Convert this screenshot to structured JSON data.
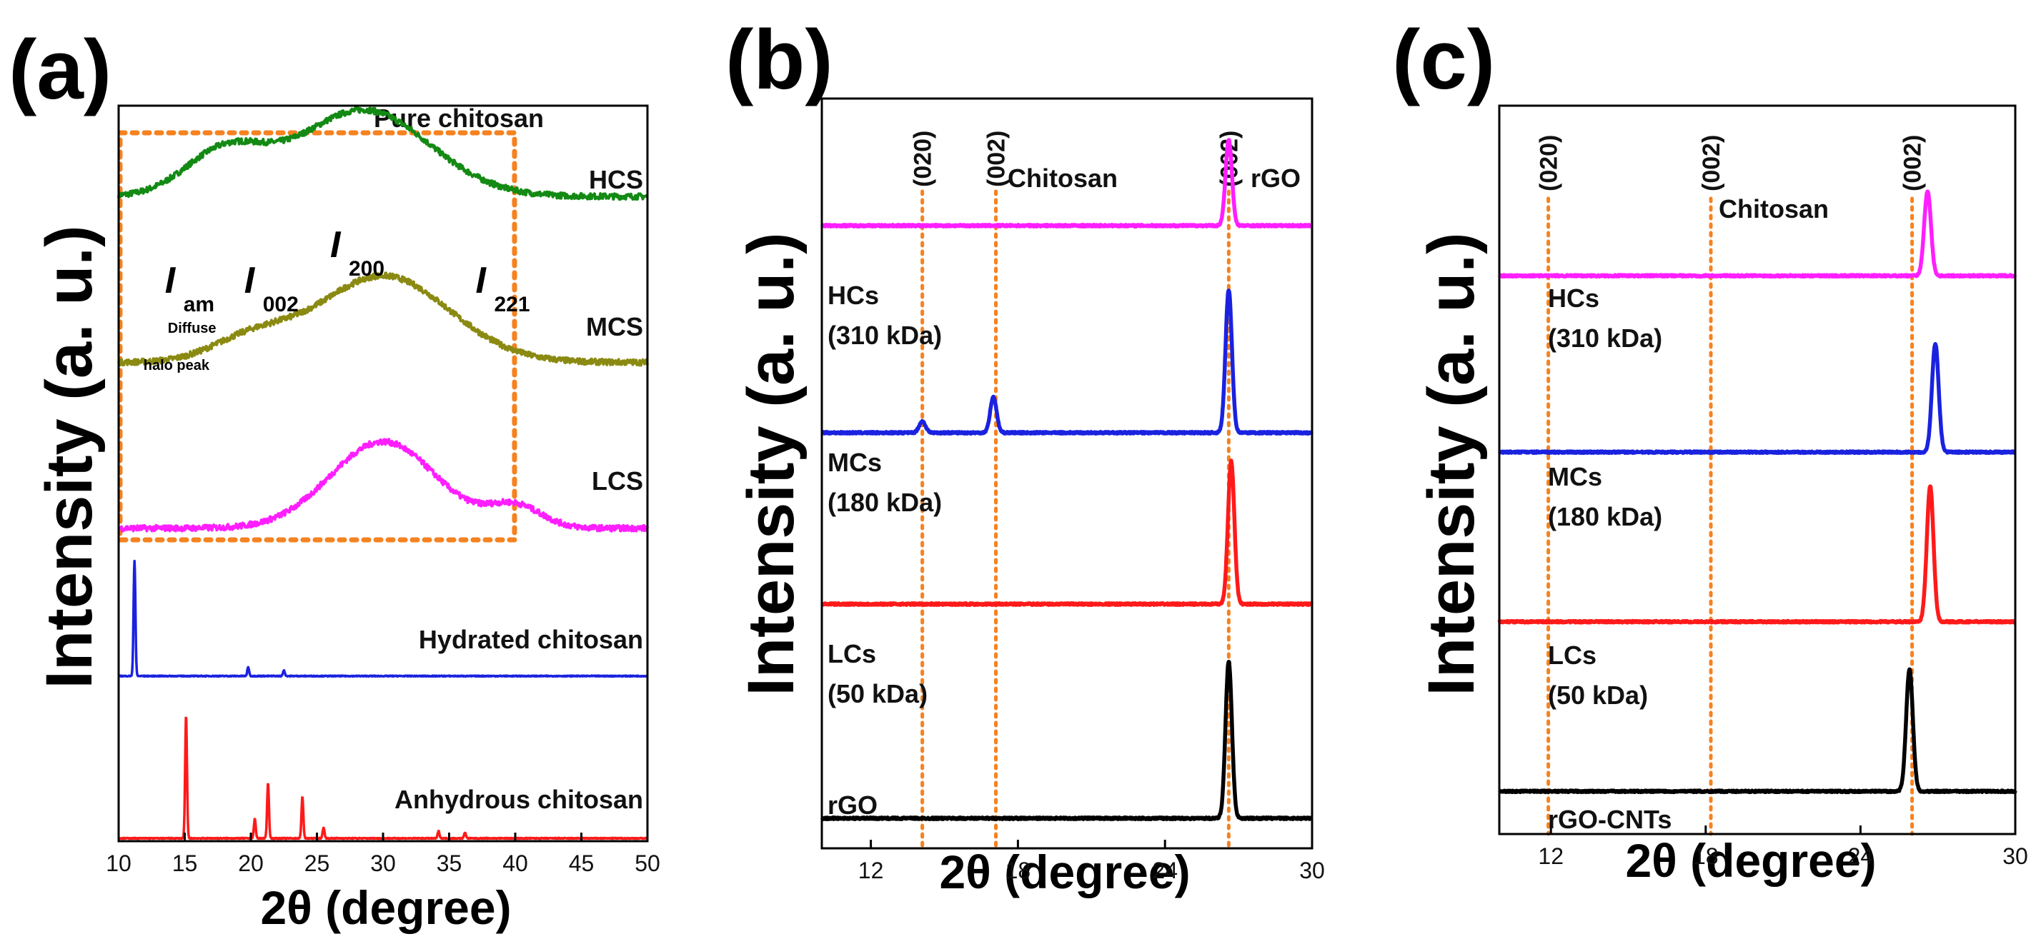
{
  "chart_data": [
    {
      "panel": "(a)",
      "type": "line",
      "xlabel": "2θ (degree)",
      "ylabel": "Intensity (a. u.)",
      "xlim": [
        10,
        50
      ],
      "xticks": [
        "10",
        "15",
        "20",
        "25",
        "30",
        "35",
        "40",
        "45",
        "50"
      ],
      "box_title": "Pure chitosan",
      "peak_labels": [
        {
          "main": "I",
          "sub": "am",
          "x": 13.5,
          "note1": "Diffuse",
          "note2": "halo peak"
        },
        {
          "main": "I",
          "sub": "002",
          "x": 19.5
        },
        {
          "main": "I",
          "sub": "200",
          "x": 26
        },
        {
          "main": "I",
          "sub": "221",
          "x": 37
        }
      ],
      "series": [
        {
          "name": "HCS",
          "color": "#138a13",
          "kind": "broad",
          "offset": 0.89,
          "peaks": [
            {
              "x": 18,
              "h": 0.06,
              "w": 3
            },
            {
              "x": 28.5,
              "h": 0.12,
              "w": 5
            }
          ]
        },
        {
          "name": "MCS",
          "color": "#8a8a12",
          "kind": "broad",
          "offset": 0.66,
          "peaks": [
            {
              "x": 20,
              "h": 0.03,
              "w": 3
            },
            {
              "x": 30,
              "h": 0.12,
              "w": 5
            }
          ]
        },
        {
          "name": "LCS",
          "color": "#ff1eff",
          "kind": "broad",
          "offset": 0.43,
          "peaks": [
            {
              "x": 30,
              "h": 0.12,
              "w": 4
            },
            {
              "x": 40,
              "h": 0.03,
              "w": 2
            }
          ]
        },
        {
          "name": "Hydrated chitosan",
          "color": "#1a22e0",
          "kind": "sharp",
          "offset": 0.225,
          "peaks": [
            {
              "x": 11.2,
              "h": 0.16
            },
            {
              "x": 19.8,
              "h": 0.012
            },
            {
              "x": 22.5,
              "h": 0.008
            }
          ]
        },
        {
          "name": "Anhydrous chitosan",
          "color": "#ff1a1a",
          "kind": "sharp",
          "offset": 0.0,
          "peaks": [
            {
              "x": 15.1,
              "h": 0.17
            },
            {
              "x": 20.3,
              "h": 0.027
            },
            {
              "x": 21.3,
              "h": 0.077
            },
            {
              "x": 23.9,
              "h": 0.058
            },
            {
              "x": 25.5,
              "h": 0.015
            },
            {
              "x": 34.2,
              "h": 0.01
            },
            {
              "x": 36.2,
              "h": 0.008
            }
          ]
        }
      ]
    },
    {
      "panel": "(b)",
      "type": "line",
      "xlabel": "2θ (degree)",
      "ylabel": "Intensity (a. u.)",
      "xlim": [
        10,
        30
      ],
      "xticks": [
        "12",
        "18",
        "24",
        "30"
      ],
      "vlines": [
        {
          "x": 14.1,
          "label": "(020)"
        },
        {
          "x": 17.1,
          "label": "(002)"
        },
        {
          "x": 26.6,
          "label": "(002)"
        }
      ],
      "group_labels": [
        "Chitosan",
        "rGO"
      ],
      "series": [
        {
          "name": "HCs",
          "mw": "(310 kDa)",
          "color": "#ff1eff",
          "offset": 0.83,
          "peaks": [
            {
              "x": 26.6,
              "h": 0.12
            }
          ]
        },
        {
          "name": "MCs",
          "mw": "(180 kDa)",
          "color": "#1a22e0",
          "offset": 0.54,
          "peaks": [
            {
              "x": 14.1,
              "h": 0.016
            },
            {
              "x": 17.0,
              "h": 0.05
            },
            {
              "x": 26.6,
              "h": 0.2
            }
          ]
        },
        {
          "name": "LCs",
          "mw": "(50 kDa)",
          "color": "#ff1a1a",
          "offset": 0.3,
          "peaks": [
            {
              "x": 26.7,
              "h": 0.2
            }
          ]
        },
        {
          "name": "rGO",
          "mw": "",
          "color": "#000000",
          "offset": 0.0,
          "peaks": [
            {
              "x": 26.6,
              "h": 0.22
            }
          ]
        }
      ]
    },
    {
      "panel": "(c)",
      "type": "line",
      "xlabel": "2θ (degree)",
      "ylabel": "Intensity (a. u.)",
      "xlim": [
        10,
        30
      ],
      "xticks": [
        "12",
        "18",
        "24",
        "30"
      ],
      "vlines": [
        {
          "x": 11.9,
          "label": "(020)"
        },
        {
          "x": 18.2,
          "label": "(002)"
        },
        {
          "x": 26.0,
          "label": "(002)"
        }
      ],
      "group_labels": [
        "Chitosan"
      ],
      "series": [
        {
          "name": "HCs",
          "mw": "(310 kDa)",
          "color": "#ff1eff",
          "offset": 0.76,
          "peaks": [
            {
              "x": 26.6,
              "h": 0.125
            }
          ]
        },
        {
          "name": "MCs",
          "mw": "(180 kDa)",
          "color": "#1a22e0",
          "offset": 0.5,
          "peaks": [
            {
              "x": 26.9,
              "h": 0.16
            }
          ]
        },
        {
          "name": "LCs",
          "mw": "(50 kDa)",
          "color": "#ff1a1a",
          "offset": 0.25,
          "peaks": [
            {
              "x": 26.7,
              "h": 0.2
            }
          ]
        },
        {
          "name": "rGO-CNTs",
          "mw": "",
          "color": "#000000",
          "offset": 0.0,
          "peaks": [
            {
              "x": 25.9,
              "h": 0.18
            }
          ]
        }
      ]
    }
  ]
}
